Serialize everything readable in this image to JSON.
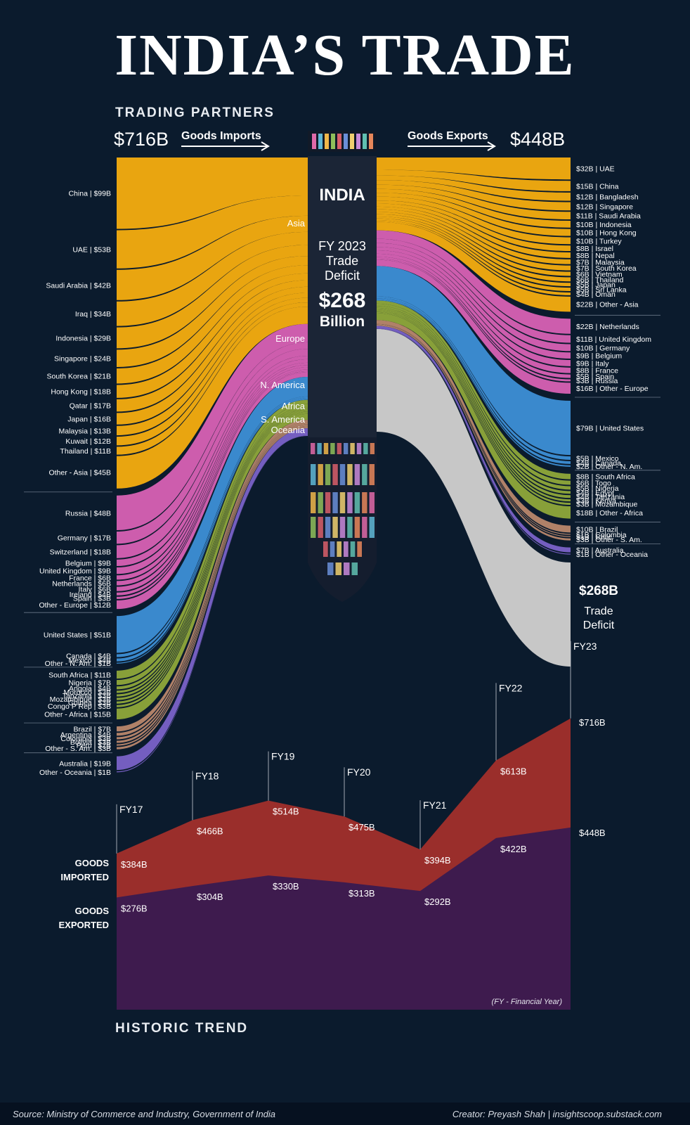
{
  "title": "INDIA’S TRADE",
  "section_partners": "TRADING PARTNERS",
  "section_trend": "HISTORIC TREND",
  "imports_total": "$716B",
  "exports_total": "$448B",
  "imports_label": "Goods Imports",
  "exports_label": "Goods Exports",
  "center": {
    "country": "INDIA",
    "fy": "FY 2023",
    "trade": "Trade",
    "deficit": "Deficit",
    "amount": "$268",
    "unit": "Billion"
  },
  "deficit_box": {
    "amount": "$268B",
    "line1": "Trade",
    "line2": "Deficit"
  },
  "source": "Source: Ministry of Commerce and Industry, Government of India",
  "creator": "Creator: Preyash Shah | insightscoop.substack.com",
  "fy_note": "(FY - Financial Year)",
  "colors": {
    "Asia": "#f5ad0f",
    "Europe": "#d861b4",
    "N. America": "#3d8fd6",
    "Africa": "#8fa83a",
    "S. America": "#b9876b",
    "Oceania": "#7a62c8",
    "deficit": "#c7c7c7",
    "imports_area": "#9a2e2b",
    "exports_area": "#3e1b4e"
  },
  "chart_data": [
    {
      "type": "sankey",
      "units": "USD billions",
      "regions_imports_labels": [
        "Asia",
        "Europe",
        "N. America",
        "Africa",
        "S. America",
        "Oceania"
      ],
      "imports": [
        {
          "region": "Asia",
          "items": [
            [
              "China",
              99,
              "China | $99B"
            ],
            [
              "UAE",
              53,
              "UAE | $53B"
            ],
            [
              "Saudi Arabia",
              42,
              "Saudi Arabia | $42B"
            ],
            [
              "Iraq",
              34,
              "Iraq | $34B"
            ],
            [
              "Indonesia",
              29,
              "Indonesia | $29B"
            ],
            [
              "Singapore",
              24,
              "Singapore | $24B"
            ],
            [
              "South Korea",
              21,
              "South Korea | $21B"
            ],
            [
              "Hong Kong",
              18,
              "Hong Kong | $18B"
            ],
            [
              "Qatar",
              17,
              "Qatar | $17B"
            ],
            [
              "Japan",
              16,
              "Japan | $16B"
            ],
            [
              "Malaysia",
              13,
              "Malaysia | $13B"
            ],
            [
              "Kuwait",
              12,
              "Kuwait | $12B"
            ],
            [
              "Thailand",
              11,
              "Thailand | $11B"
            ],
            [
              "Other - Asia",
              45,
              "Other - Asia | $45B"
            ]
          ]
        },
        {
          "region": "Europe",
          "items": [
            [
              "Russia",
              48,
              "Russia | $48B"
            ],
            [
              "Germany",
              17,
              "Germany | $17B"
            ],
            [
              "Switzerland",
              18,
              "Switzerland | $18B"
            ],
            [
              "Belgium",
              9,
              "Belgium | $9B"
            ],
            [
              "United Kingdom",
              9,
              "United Kingdom | $9B"
            ],
            [
              "France",
              6,
              "France | $6B"
            ],
            [
              "Netherlands",
              6,
              "Netherlands | $6B"
            ],
            [
              "Italy",
              6,
              "Italy | $6B"
            ],
            [
              "Ireland",
              4,
              "Ireland | $4B"
            ],
            [
              "Spain",
              3,
              "Spain | $3B"
            ],
            [
              "Other - Europe",
              12,
              "Other - Europe | $12B"
            ]
          ]
        },
        {
          "region": "N. America",
          "items": [
            [
              "United States",
              51,
              "United States | $51B"
            ],
            [
              "Canada",
              4,
              "Canada | $4B"
            ],
            [
              "Mexico",
              4,
              "Mexico | $4B"
            ],
            [
              "Other - N. Am.",
              1,
              "Other - N. Am. | $1B"
            ]
          ]
        },
        {
          "region": "Africa",
          "items": [
            [
              "South Africa",
              11,
              "South Africa | $11B"
            ],
            [
              "Nigeria",
              7,
              "Nigeria | $7B"
            ],
            [
              "Angola",
              4,
              "Angola | $4B"
            ],
            [
              "Morocco",
              3,
              "Morocco | $3B"
            ],
            [
              "Tanzania",
              3,
              "Tanzania | $3B"
            ],
            [
              "Mozambique",
              3,
              "Mozambique | $3B"
            ],
            [
              "Guinea",
              3,
              "Guinea | $3B"
            ],
            [
              "Congo P Rep",
              3,
              "Congo P Rep | $3B"
            ],
            [
              "Other - Africa",
              15,
              "Other - Africa | $15B"
            ]
          ]
        },
        {
          "region": "S. America",
          "items": [
            [
              "Brazil",
              7,
              "Brazil | $7B"
            ],
            [
              "Argentina",
              4,
              "Argentina | $4B"
            ],
            [
              "Colombia",
              3,
              "Colombia | $3B"
            ],
            [
              "Bolivia",
              3,
              "Bolivia | $3B"
            ],
            [
              "Peru",
              2,
              "Peru | $2B"
            ],
            [
              "Other - S. Am.",
              3,
              "Other - S. Am. | $3B"
            ]
          ]
        },
        {
          "region": "Oceania",
          "items": [
            [
              "Australia",
              19,
              "Australia | $19B"
            ],
            [
              "Other - Oceania",
              1,
              "Other - Oceania | $1B"
            ]
          ]
        }
      ],
      "exports": [
        {
          "region": "Asia",
          "items": [
            [
              "UAE",
              32,
              "$32B | UAE"
            ],
            [
              "China",
              15,
              "$15B | China"
            ],
            [
              "Bangladesh",
              12,
              "$12B | Bangladesh"
            ],
            [
              "Singapore",
              12,
              "$12B | Singapore"
            ],
            [
              "Saudi Arabia",
              11,
              "$11B | Saudi Arabia"
            ],
            [
              "Indonesia",
              10,
              "$10B | Indonesia"
            ],
            [
              "Hong Kong",
              10,
              "$10B | Hong Kong"
            ],
            [
              "Turkey",
              10,
              "$10B | Turkey"
            ],
            [
              "Israel",
              8,
              "$8B | Israel"
            ],
            [
              "Nepal",
              8,
              "$8B | Nepal"
            ],
            [
              "Malaysia",
              7,
              "$7B | Malaysia"
            ],
            [
              "South Korea",
              7,
              "$7B | South Korea"
            ],
            [
              "Vietnam",
              6,
              "$6B | Vietnam"
            ],
            [
              "Thailand",
              6,
              "$6B | Thailand"
            ],
            [
              "Japan",
              5,
              "$5B | Japan"
            ],
            [
              "Sri Lanka",
              5,
              "$5B | Sri Lanka"
            ],
            [
              "Oman",
              4,
              "$4B | Oman"
            ],
            [
              "Other - Asia",
              22,
              "$22B | Other - Asia"
            ]
          ]
        },
        {
          "region": "Europe",
          "items": [
            [
              "Netherlands",
              22,
              "$22B | Netherlands"
            ],
            [
              "United Kingdom",
              11,
              "$11B | United Kingdom"
            ],
            [
              "Germany",
              10,
              "$10B | Germany"
            ],
            [
              "Belgium",
              9,
              "$9B | Belgium"
            ],
            [
              "Italy",
              9,
              "$9B | Italy"
            ],
            [
              "France",
              8,
              "$8B | France"
            ],
            [
              "Spain",
              5,
              "$5B | Spain"
            ],
            [
              "Russia",
              3,
              "$3B | Russia"
            ],
            [
              "Other - Europe",
              16,
              "$16B | Other - Europe"
            ]
          ]
        },
        {
          "region": "N. America",
          "items": [
            [
              "United States",
              79,
              "$79B | United States"
            ],
            [
              "Mexico",
              5,
              "$5B | Mexico"
            ],
            [
              "Canada",
              4,
              "$4B | Canada"
            ],
            [
              "Other - N. Am.",
              2,
              "$2B | Other - N. Am."
            ]
          ]
        },
        {
          "region": "Africa",
          "items": [
            [
              "South Africa",
              8,
              "$8B | South Africa"
            ],
            [
              "Togo",
              6,
              "$6B | Togo"
            ],
            [
              "Nigeria",
              5,
              "$5B | Nigeria"
            ],
            [
              "Egypt",
              4,
              "$4B | Egypt"
            ],
            [
              "Tanzania",
              4,
              "$4B | Tanzania"
            ],
            [
              "Kenya",
              3,
              "$3B | Kenya"
            ],
            [
              "Mozambique",
              3,
              "$3B | Mozambique"
            ],
            [
              "Other - Africa",
              18,
              "$18B | Other - Africa"
            ]
          ]
        },
        {
          "region": "S. America",
          "items": [
            [
              "Brazil",
              10,
              "$10B | Brazil"
            ],
            [
              "Colombia",
              1,
              "$1B | Colombia"
            ],
            [
              "Chile",
              1,
              "$1B | Chile"
            ],
            [
              "Other - S. Am.",
              3,
              "$3B | Other - S. Am."
            ]
          ]
        },
        {
          "region": "Oceania",
          "items": [
            [
              "Australia",
              7,
              "$7B | Australia"
            ],
            [
              "Other - Oceania",
              1,
              "$1B | Other - Oceania"
            ]
          ]
        }
      ],
      "deficit": 268
    },
    {
      "type": "area",
      "units": "USD billions",
      "categories": [
        "FY17",
        "FY18",
        "FY19",
        "FY20",
        "FY21",
        "FY22",
        "FY23"
      ],
      "series": [
        {
          "name": "GOODS IMPORTED",
          "values": [
            384,
            466,
            514,
            475,
            394,
            613,
            716
          ],
          "labels": [
            "$384B",
            "$466B",
            "$514B",
            "$475B",
            "$394B",
            "$613B",
            "$716B"
          ]
        },
        {
          "name": "GOODS EXPORTED",
          "values": [
            276,
            304,
            330,
            313,
            292,
            422,
            448
          ],
          "labels": [
            "$276B",
            "$304B",
            "$330B",
            "$313B",
            "$292B",
            "$422B",
            "$448B"
          ]
        }
      ],
      "series_label_1": "GOODS",
      "series_label_1b": "IMPORTED",
      "series_label_2": "GOODS",
      "series_label_2b": "EXPORTED"
    }
  ]
}
